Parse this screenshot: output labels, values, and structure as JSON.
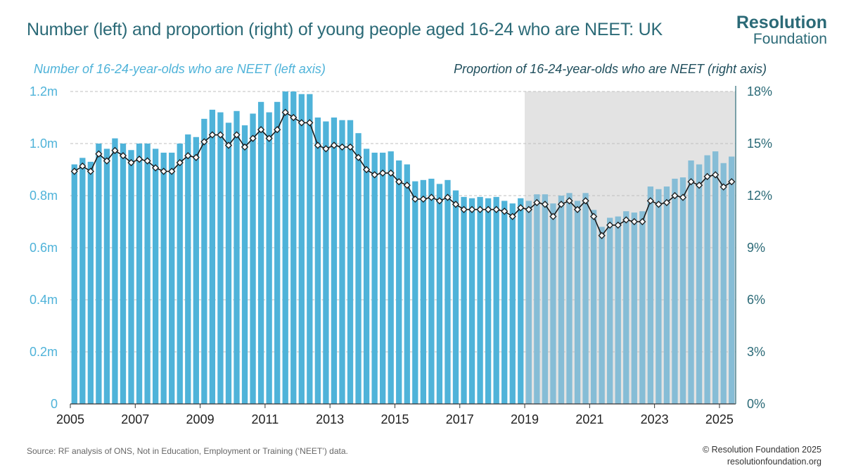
{
  "header": {
    "title": "Number (left) and proportion (right) of young people aged 16-24 who are NEET: UK",
    "logo_line1": "Resolution",
    "logo_line2": "Foundation"
  },
  "footer": {
    "source": "Source: RF analysis of ONS, Not in Education, Employment or Training (‘NEET’) data.",
    "copyright": "© Resolution Foundation 2025",
    "website": "resolutionfoundation.org"
  },
  "chart_data": {
    "type": "bar",
    "colors": {
      "bars": "#4fb3d9",
      "bars_shaded": "#86bdd6",
      "line": "#1a1a1a",
      "markers": "#ffffff",
      "shade": "#e3e3e3",
      "left_axis": "#4fb3d9",
      "right_axis": "#2b6a77"
    },
    "left_axis_label": "Number of 16-24-year-olds who are NEET (left axis)",
    "right_axis_label": "Proportion of 16-24-year-olds who are NEET (right axis)",
    "left_ticks": [
      "0",
      "0.2m",
      "0.4m",
      "0.6m",
      "0.8m",
      "1.0m",
      "1.2m"
    ],
    "right_ticks": [
      "0%",
      "3%",
      "6%",
      "9%",
      "12%",
      "15%",
      "18%"
    ],
    "x_ticks": [
      "2005",
      "2007",
      "2009",
      "2011",
      "2013",
      "2015",
      "2017",
      "2019",
      "2021",
      "2023",
      "2025"
    ],
    "ylim_left": [
      0,
      1.2
    ],
    "ylim_right": [
      0,
      18
    ],
    "shaded_region_start": "2019",
    "grid": "horizontal dashed",
    "x_start_year": 2005,
    "series": [
      {
        "name": "Number of 16-24-year-olds who are NEET (left axis)",
        "axis": "left",
        "unit": "millions",
        "values": [
          0.92,
          0.945,
          0.93,
          1.0,
          0.98,
          1.02,
          1.0,
          0.975,
          1.0,
          1.0,
          0.98,
          0.965,
          0.965,
          1.0,
          1.035,
          1.025,
          1.095,
          1.13,
          1.12,
          1.08,
          1.125,
          1.07,
          1.115,
          1.16,
          1.12,
          1.16,
          1.2,
          1.2,
          1.19,
          1.19,
          1.1,
          1.085,
          1.1,
          1.09,
          1.09,
          1.04,
          0.98,
          0.965,
          0.965,
          0.97,
          0.935,
          0.92,
          0.855,
          0.86,
          0.865,
          0.845,
          0.86,
          0.82,
          0.795,
          0.79,
          0.795,
          0.79,
          0.795,
          0.78,
          0.77,
          0.79,
          0.78,
          0.805,
          0.805,
          0.77,
          0.8,
          0.81,
          0.78,
          0.81,
          0.745,
          0.68,
          0.715,
          0.72,
          0.74,
          0.735,
          0.74,
          0.835,
          0.825,
          0.835,
          0.865,
          0.87,
          0.935,
          0.92,
          0.955,
          0.97,
          0.925,
          0.95
        ]
      },
      {
        "name": "Proportion of 16-24-year-olds who are NEET (right axis)",
        "axis": "right",
        "unit": "percent",
        "values": [
          13.4,
          13.7,
          13.4,
          14.4,
          14.0,
          14.6,
          14.3,
          13.9,
          14.1,
          14.0,
          13.6,
          13.4,
          13.4,
          13.9,
          14.3,
          14.2,
          15.1,
          15.5,
          15.5,
          14.9,
          15.5,
          14.8,
          15.3,
          15.8,
          15.3,
          15.8,
          16.8,
          16.5,
          16.2,
          16.2,
          14.9,
          14.7,
          14.9,
          14.8,
          14.8,
          14.2,
          13.5,
          13.2,
          13.3,
          13.3,
          12.8,
          12.6,
          11.8,
          11.8,
          11.9,
          11.7,
          11.9,
          11.5,
          11.2,
          11.2,
          11.2,
          11.2,
          11.2,
          11.1,
          10.8,
          11.3,
          11.2,
          11.6,
          11.5,
          10.8,
          11.5,
          11.7,
          11.2,
          11.7,
          10.8,
          9.7,
          10.3,
          10.3,
          10.6,
          10.5,
          10.5,
          11.7,
          11.5,
          11.6,
          12.0,
          11.9,
          12.8,
          12.6,
          13.1,
          13.2,
          12.5,
          12.8
        ]
      }
    ]
  }
}
